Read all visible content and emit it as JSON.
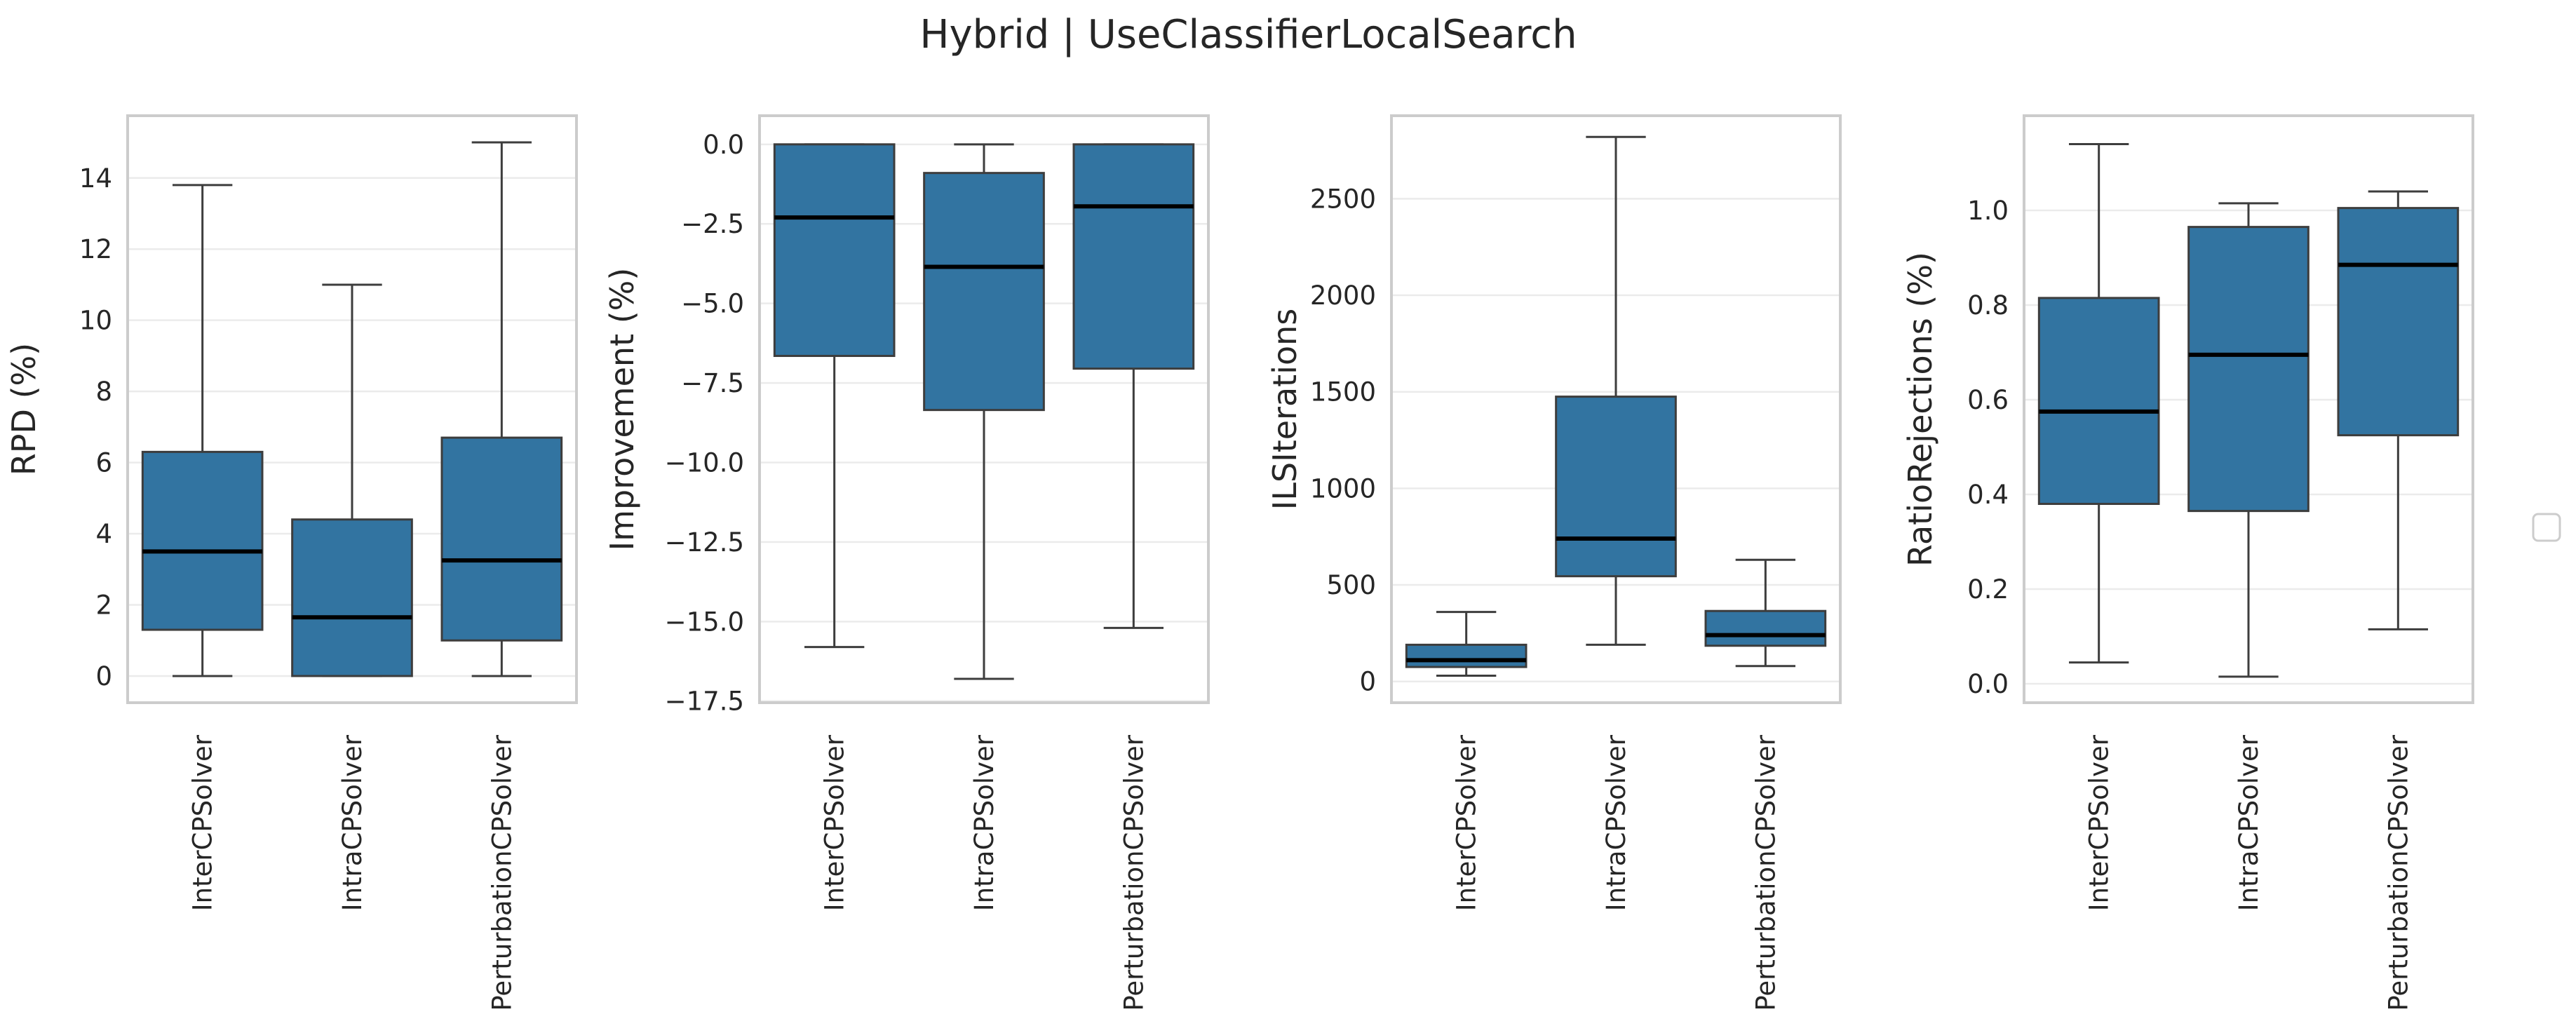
{
  "title": "Hybrid | UseClassifierLocalSearch",
  "colors": {
    "box_fill": "#3274a1",
    "box_edge": "#3d3d3d",
    "median": "#000000",
    "whisker": "#3d3d3d",
    "grid": "#ebebeb",
    "frame": "#cccccc",
    "text": "#262626"
  },
  "chart_data": [
    {
      "type": "box",
      "ylabel": "RPD (%)",
      "categories": [
        "InterCPSolver",
        "IntraCPSolver",
        "PerturbationCPSolver"
      ],
      "ylim": [
        -0.75,
        15.75
      ],
      "yticks": [
        0,
        2,
        4,
        6,
        8,
        10,
        12,
        14
      ],
      "ytick_labels": [
        "0",
        "2",
        "4",
        "6",
        "8",
        "10",
        "12",
        "14"
      ],
      "grid": true,
      "boxes": [
        {
          "whislo": 0.0,
          "q1": 1.3,
          "med": 3.5,
          "q3": 6.3,
          "whishi": 13.8
        },
        {
          "whislo": 0.0,
          "q1": 0.0,
          "med": 1.65,
          "q3": 4.4,
          "whishi": 11.0
        },
        {
          "whislo": 0.0,
          "q1": 1.0,
          "med": 3.25,
          "q3": 6.7,
          "whishi": 15.0
        }
      ]
    },
    {
      "type": "box",
      "ylabel": "Improvement (%)",
      "categories": [
        "InterCPSolver",
        "IntraCPSolver",
        "PerturbationCPSolver"
      ],
      "ylim": [
        -17.55,
        0.9
      ],
      "yticks": [
        0.0,
        -2.5,
        -5.0,
        -7.5,
        -10.0,
        -12.5,
        -15.0,
        -17.5
      ],
      "ytick_labels": [
        "0.0",
        "−2.5",
        "−5.0",
        "−7.5",
        "−10.0",
        "−12.5",
        "−15.0",
        "−17.5"
      ],
      "grid": true,
      "boxes": [
        {
          "whislo": -15.8,
          "q1": -6.65,
          "med": -2.3,
          "q3": 0.0,
          "whishi": 0.0
        },
        {
          "whislo": -16.8,
          "q1": -8.35,
          "med": -3.85,
          "q3": -0.9,
          "whishi": 0.0
        },
        {
          "whislo": -15.2,
          "q1": -7.05,
          "med": -1.95,
          "q3": 0.0,
          "whishi": 0.0
        }
      ]
    },
    {
      "type": "box",
      "ylabel": "ILSIterations",
      "categories": [
        "InterCPSolver",
        "IntraCPSolver",
        "PerturbationCPSolver"
      ],
      "ylim": [
        -110,
        2930
      ],
      "yticks": [
        0,
        500,
        1000,
        1500,
        2000,
        2500
      ],
      "ytick_labels": [
        "0",
        "500",
        "1000",
        "1500",
        "2000",
        "2500"
      ],
      "grid": true,
      "boxes": [
        {
          "whislo": 30,
          "q1": 75,
          "med": 110,
          "q3": 190,
          "whishi": 360
        },
        {
          "whislo": 190,
          "q1": 545,
          "med": 740,
          "q3": 1475,
          "whishi": 2820
        },
        {
          "whislo": 80,
          "q1": 185,
          "med": 240,
          "q3": 365,
          "whishi": 630
        }
      ]
    },
    {
      "type": "box",
      "ylabel": "RatioRejections (%)",
      "categories": [
        "InterCPSolver",
        "IntraCPSolver",
        "PerturbationCPSolver"
      ],
      "ylim": [
        -0.04,
        1.2
      ],
      "yticks": [
        0.0,
        0.2,
        0.4,
        0.6,
        0.8,
        1.0
      ],
      "ytick_labels": [
        "0.0",
        "0.2",
        "0.4",
        "0.6",
        "0.8",
        "1.0"
      ],
      "grid": true,
      "boxes": [
        {
          "whislo": 0.045,
          "q1": 0.38,
          "med": 0.575,
          "q3": 0.815,
          "whishi": 1.14
        },
        {
          "whislo": 0.015,
          "q1": 0.365,
          "med": 0.695,
          "q3": 0.965,
          "whishi": 1.015
        },
        {
          "whislo": 0.115,
          "q1": 0.525,
          "med": 0.885,
          "q3": 1.005,
          "whishi": 1.04
        }
      ]
    }
  ],
  "legend": {
    "placement": "right",
    "entries": []
  }
}
